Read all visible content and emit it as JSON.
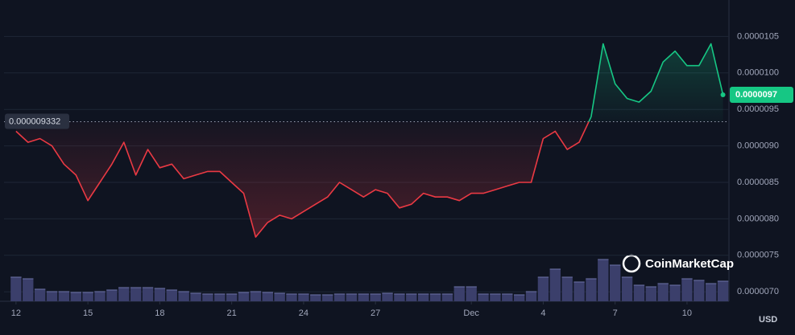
{
  "chart_data": {
    "type": "line",
    "watermark": "CoinMarketCap",
    "currency": "USD",
    "up_color": "#16c784",
    "down_color": "#ea3943",
    "baseline": 9.332e-06,
    "current_price": 9.7e-06,
    "values": [
      9.2e-06,
      9.05e-06,
      9.1e-06,
      9e-06,
      8.75e-06,
      8.6e-06,
      8.25e-06,
      8.5e-06,
      8.75e-06,
      9.05e-06,
      8.6e-06,
      8.95e-06,
      8.7e-06,
      8.75e-06,
      8.55e-06,
      8.6e-06,
      8.65e-06,
      8.65e-06,
      8.5e-06,
      8.35e-06,
      7.75e-06,
      7.95e-06,
      8.05e-06,
      8e-06,
      8.1e-06,
      8.2e-06,
      8.3e-06,
      8.5e-06,
      8.4e-06,
      8.3e-06,
      8.4e-06,
      8.35e-06,
      8.15e-06,
      8.2e-06,
      8.35e-06,
      8.3e-06,
      8.3e-06,
      8.25e-06,
      8.35e-06,
      8.35e-06,
      8.4e-06,
      8.45e-06,
      8.5e-06,
      8.5e-06,
      9.1e-06,
      9.2e-06,
      8.95e-06,
      9.05e-06,
      9.4e-06,
      1.04e-05,
      9.85e-06,
      9.65e-06,
      9.6e-06,
      9.75e-06,
      1.015e-05,
      1.03e-05,
      1.01e-05,
      1.01e-05,
      1.04e-05,
      9.7e-06
    ],
    "volume": {
      "color": "#3b3f6b",
      "vlim": [
        0,
        60
      ],
      "values": [
        30,
        28,
        15,
        12,
        12,
        11,
        11,
        12,
        14,
        17,
        17,
        17,
        16,
        14,
        12,
        10,
        9,
        9,
        9,
        11,
        12,
        11,
        10,
        9,
        9,
        8,
        8,
        9,
        9,
        9,
        9,
        10,
        9,
        9,
        9,
        9,
        9,
        18,
        18,
        9,
        9,
        9,
        8,
        12,
        30,
        40,
        30,
        24,
        28,
        52,
        45,
        30,
        20,
        18,
        22,
        20,
        28,
        26,
        22,
        25
      ]
    },
    "xlim": [
      -1,
      59.5
    ],
    "xticks": [
      {
        "value": 0,
        "label": "12"
      },
      {
        "value": 6,
        "label": "15"
      },
      {
        "value": 12,
        "label": "18"
      },
      {
        "value": 18,
        "label": "21"
      },
      {
        "value": 24,
        "label": "24"
      },
      {
        "value": 30,
        "label": "27"
      },
      {
        "value": 38,
        "label": "Dec"
      },
      {
        "value": 44,
        "label": "4"
      },
      {
        "value": 50,
        "label": "7"
      },
      {
        "value": 56,
        "label": "10"
      }
    ],
    "ylim": [
      6.87e-06,
      1.1e-05
    ],
    "yticks": [
      1.05e-05,
      {
        "value": 1e-05,
        "label": "0.0000100"
      },
      9.5e-06,
      {
        "value": 9e-06,
        "label": "0.0000090"
      },
      8.5e-06,
      {
        "value": 8e-06,
        "label": "0.0000080"
      },
      7.5e-06,
      {
        "value": 7e-06,
        "label": "0.0000070"
      }
    ],
    "grid": true
  }
}
